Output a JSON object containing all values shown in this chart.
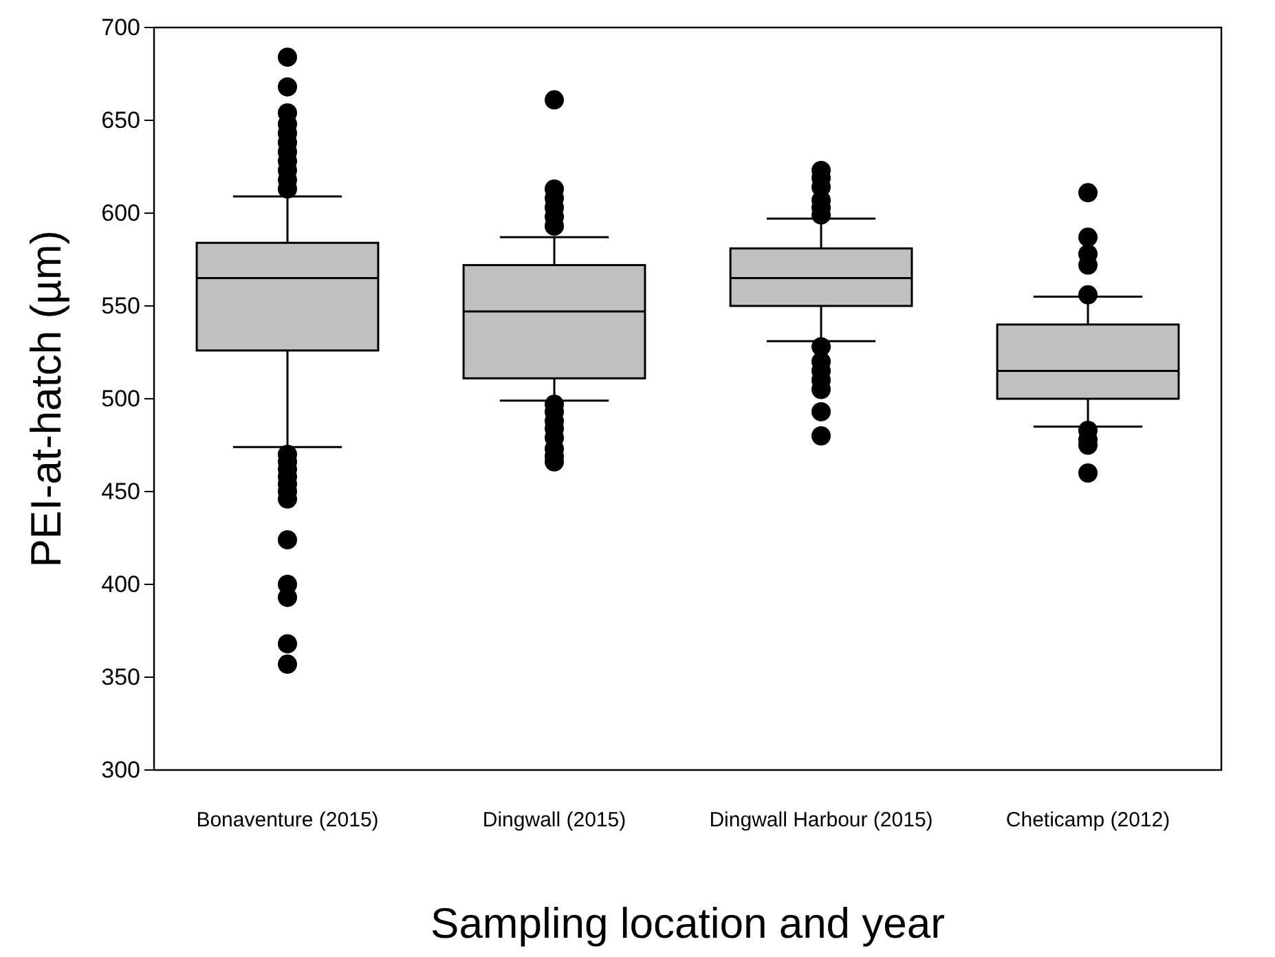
{
  "chart_data": {
    "type": "box",
    "xlabel": "Sampling location and year",
    "ylabel": "PEI-at-hatch (µm)",
    "categories": [
      "Bonaventure (2015)",
      "Dingwall (2015)",
      "Dingwall Harbour (2015)",
      "Cheticamp (2012)"
    ],
    "ylim": [
      300,
      700
    ],
    "yticks": [
      300,
      350,
      400,
      450,
      500,
      550,
      600,
      650,
      700
    ],
    "grid": false,
    "color": "#c0c0c0",
    "boxes": [
      {
        "low": 474,
        "q1": 526,
        "median": 565,
        "q3": 584,
        "high": 609,
        "outliers": [
          684,
          668,
          654,
          648,
          643,
          638,
          633,
          628,
          623,
          618,
          613,
          470,
          466,
          462,
          458,
          454,
          450,
          446,
          424,
          400,
          393,
          368,
          357
        ]
      },
      {
        "low": 499,
        "q1": 511,
        "median": 547,
        "q3": 572,
        "high": 587,
        "outliers": [
          661,
          613,
          608,
          603,
          598,
          593,
          497,
          493,
          488,
          484,
          479,
          473,
          469,
          466
        ]
      },
      {
        "low": 531,
        "q1": 550,
        "median": 565,
        "q3": 581,
        "high": 597,
        "outliers": [
          623,
          619,
          614,
          607,
          603,
          599,
          528,
          520,
          515,
          510,
          505,
          493,
          480
        ]
      },
      {
        "low": 485,
        "q1": 500,
        "median": 515,
        "q3": 540,
        "high": 555,
        "outliers": [
          611,
          587,
          578,
          572,
          556,
          483,
          478,
          475,
          460
        ]
      }
    ]
  }
}
